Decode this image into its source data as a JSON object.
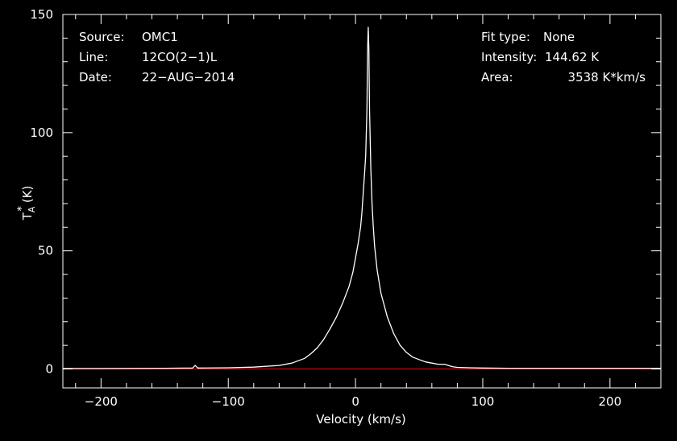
{
  "info_left": [
    {
      "label": "Source:",
      "value": "OMC1"
    },
    {
      "label": "Line:",
      "value": "12CO(2−1)L"
    },
    {
      "label": "Date:",
      "value": "22−AUG−2014"
    }
  ],
  "info_right": [
    {
      "label": "Fit type:",
      "value": "None"
    },
    {
      "label": "Intensity:",
      "value": "144.62 K"
    },
    {
      "label": "Area:",
      "value": "3538 K*km/s"
    }
  ],
  "colors": {
    "background": "#000000",
    "axes": "#ffffff",
    "spectrum": "#ffffff",
    "baseline": "#e00000"
  },
  "chart_data": {
    "type": "line",
    "xlabel": "Velocity (km/s)",
    "ylabel": "T_A* (K)",
    "ylabel_main": "T",
    "ylabel_sup": "*",
    "ylabel_sub": "A",
    "ylabel_unit": "(K)",
    "xlim": [
      -230,
      240
    ],
    "ylim": [
      -8,
      150
    ],
    "xticks": [
      -200,
      -100,
      0,
      100,
      200
    ],
    "xtick_labels": [
      "−200",
      "−100",
      "0",
      "100",
      "200"
    ],
    "yticks": [
      0,
      50,
      100,
      150
    ],
    "ytick_labels": [
      "0",
      "50",
      "100",
      "150"
    ],
    "grid": false,
    "series": [
      {
        "x": [
          -230,
          -200,
          -150,
          -128,
          -126,
          -124,
          -100,
          -80,
          -60,
          -50,
          -40,
          -35,
          -30,
          -25,
          -20,
          -15,
          -10,
          -5,
          -2,
          0,
          2,
          4,
          5,
          6,
          7,
          8,
          9,
          9.5,
          10,
          10.5,
          11,
          12,
          13,
          14,
          15,
          17,
          20,
          25,
          30,
          35,
          40,
          45,
          50,
          55,
          60,
          65,
          70,
          73,
          76,
          80,
          90,
          100,
          120,
          150,
          200,
          240
        ],
        "y": [
          0.2,
          0.2,
          0.3,
          0.4,
          1.5,
          0.4,
          0.5,
          0.8,
          1.5,
          2.5,
          4.5,
          6.5,
          9,
          12.5,
          17,
          22,
          28,
          35,
          41,
          47,
          53,
          60,
          66,
          74,
          82,
          90,
          110,
          135,
          144.6,
          135,
          110,
          85,
          70,
          60,
          52,
          42,
          32,
          22,
          15,
          10,
          7,
          5,
          4,
          3,
          2.5,
          2,
          2,
          1.5,
          1,
          0.7,
          0.5,
          0.4,
          0.3,
          0.3,
          0.3,
          0.3
        ]
      },
      {
        "x": [
          -230,
          240
        ],
        "y": [
          0,
          0
        ]
      }
    ]
  }
}
